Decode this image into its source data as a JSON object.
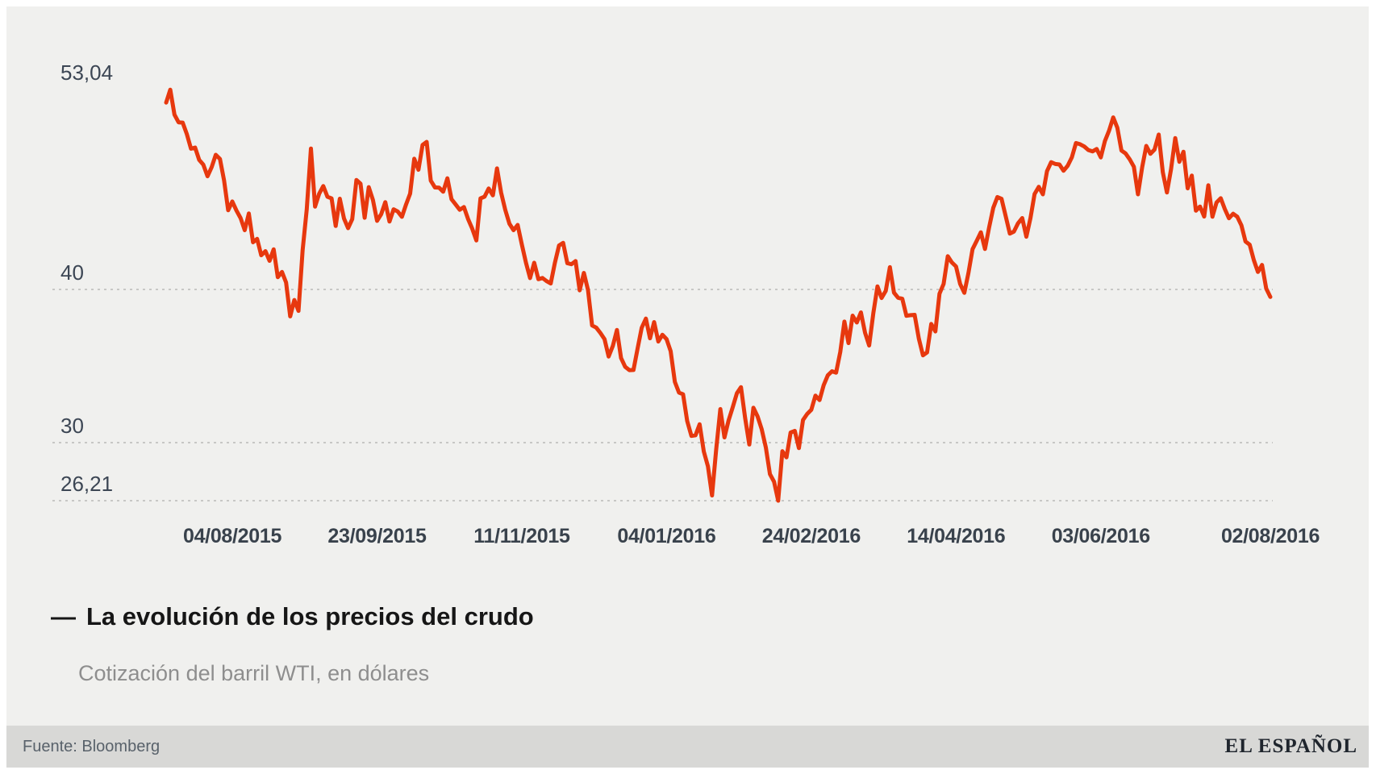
{
  "chart": {
    "title_dash": "—",
    "title": "La evolución de los precios del crudo",
    "subtitle": "Cotización del barril WTI, en dólares"
  },
  "footer": {
    "source": "Fuente: Bloomberg",
    "brand": "EL ESPAÑOL"
  },
  "colors": {
    "line": "#e7380e",
    "background": "#f0f0ee",
    "footer_bar": "#d8d8d6",
    "grid": "#c7c7c5",
    "axis_text": "#3c4654",
    "title_text": "#161616",
    "subtitle_text": "#8e8e8e",
    "source_text": "#59626b",
    "brand_text": "#1f252d"
  },
  "chart_data": {
    "type": "line",
    "title": "La evolución de los precios del crudo",
    "subtitle": "Cotización del barril WTI, en dólares",
    "source": "Fuente: Bloomberg",
    "ylim": [
      26.21,
      53.04
    ],
    "grid": "dashed horizontal",
    "y_ticks": [
      {
        "label": "53,04",
        "value": 53.04,
        "gridline": false
      },
      {
        "label": "40",
        "value": 40,
        "gridline": true
      },
      {
        "label": "30",
        "value": 30,
        "gridline": true
      },
      {
        "label": "26,21",
        "value": 26.21,
        "gridline": true
      }
    ],
    "x_ticks": [
      {
        "label": "04/08/2015",
        "index": 16
      },
      {
        "label": "23/09/2015",
        "index": 51
      },
      {
        "label": "11/11/2015",
        "index": 86
      },
      {
        "label": "04/01/2016",
        "index": 121
      },
      {
        "label": "24/02/2016",
        "index": 156
      },
      {
        "label": "14/04/2016",
        "index": 191
      },
      {
        "label": "03/06/2016",
        "index": 226
      },
      {
        "label": "02/08/2016",
        "index": 267
      }
    ],
    "values": [
      52.2,
      53.04,
      51.41,
      50.91,
      50.89,
      50.15,
      49.19,
      49.26,
      48.45,
      48.14,
      47.39,
      47.98,
      48.79,
      48.52,
      47.12,
      45.17,
      45.74,
      45.15,
      44.66,
      43.87,
      44.96,
      43.08,
      43.3,
      42.23,
      42.5,
      41.87,
      42.62,
      40.8,
      41.14,
      40.45,
      38.24,
      39.31,
      38.6,
      42.56,
      45.22,
      49.2,
      45.41,
      46.25,
      46.75,
      46.05,
      45.94,
      44.15,
      45.92,
      44.63,
      44.0,
      44.59,
      47.15,
      46.9,
      44.68,
      46.68,
      45.83,
      44.48,
      44.91,
      45.7,
      44.43,
      45.23,
      45.09,
      44.74,
      45.54,
      46.26,
      48.53,
      47.81,
      49.43,
      49.63,
      47.1,
      46.66,
      46.64,
      46.38,
      47.26,
      45.89,
      45.55,
      45.2,
      45.38,
      44.6,
      43.98,
      43.2,
      45.94,
      46.06,
      46.59,
      46.14,
      47.9,
      46.32,
      45.2,
      44.29,
      43.87,
      44.21,
      42.93,
      41.75,
      40.74,
      41.74,
      40.67,
      40.75,
      40.54,
      40.39,
      41.75,
      42.87,
      43.04,
      41.71,
      41.65,
      41.85,
      39.94,
      41.08,
      39.97,
      37.65,
      37.51,
      37.16,
      36.76,
      35.62,
      36.31,
      37.35,
      35.52,
      34.95,
      34.73,
      34.74,
      36.14,
      37.5,
      38.1,
      36.81,
      37.87,
      36.6,
      37.04,
      36.76,
      35.97,
      33.97,
      33.27,
      33.16,
      31.41,
      30.44,
      30.48,
      31.2,
      29.42,
      28.46,
      26.55,
      29.53,
      32.19,
      30.34,
      31.45,
      32.3,
      33.22,
      33.62,
      31.62,
      29.88,
      32.28,
      31.72,
      30.89,
      29.69,
      27.94,
      27.45,
      26.21,
      29.44,
      29.04,
      30.66,
      30.77,
      29.64,
      31.48,
      31.87,
      32.15,
      33.07,
      32.78,
      33.75,
      34.4,
      34.66,
      34.57,
      35.92,
      37.9,
      36.5,
      38.29,
      37.84,
      38.5,
      37.18,
      36.34,
      38.46,
      40.2,
      39.44,
      39.91,
      41.45,
      39.79,
      39.46,
      39.39,
      38.28,
      38.32,
      38.34,
      36.79,
      35.7,
      35.89,
      37.75,
      37.26,
      39.72,
      40.36,
      42.17,
      41.76,
      41.5,
      40.36,
      39.78,
      41.08,
      42.63,
      43.18,
      43.73,
      42.64,
      44.04,
      45.33,
      46.03,
      45.92,
      44.78,
      43.65,
      43.78,
      44.32,
      44.66,
      43.44,
      44.66,
      46.23,
      46.7,
      46.21,
      47.72,
      48.31,
      48.19,
      48.16,
      47.75,
      48.08,
      48.62,
      49.56,
      49.48,
      49.33,
      49.1,
      49.01,
      49.17,
      48.62,
      49.69,
      50.36,
      51.23,
      50.56,
      49.07,
      48.88,
      48.49,
      48.01,
      46.21,
      47.98,
      49.37,
      48.85,
      49.13,
      50.11,
      47.64,
      46.33,
      47.85,
      49.88,
      48.33,
      48.99,
      46.6,
      47.43,
      45.14,
      45.41,
      44.76,
      46.8,
      44.75,
      45.68,
      45.95,
      45.24,
      44.65,
      44.94,
      44.75,
      44.19,
      43.13,
      42.92,
      41.92,
      41.14,
      41.6,
      40.06,
      39.51
    ]
  }
}
